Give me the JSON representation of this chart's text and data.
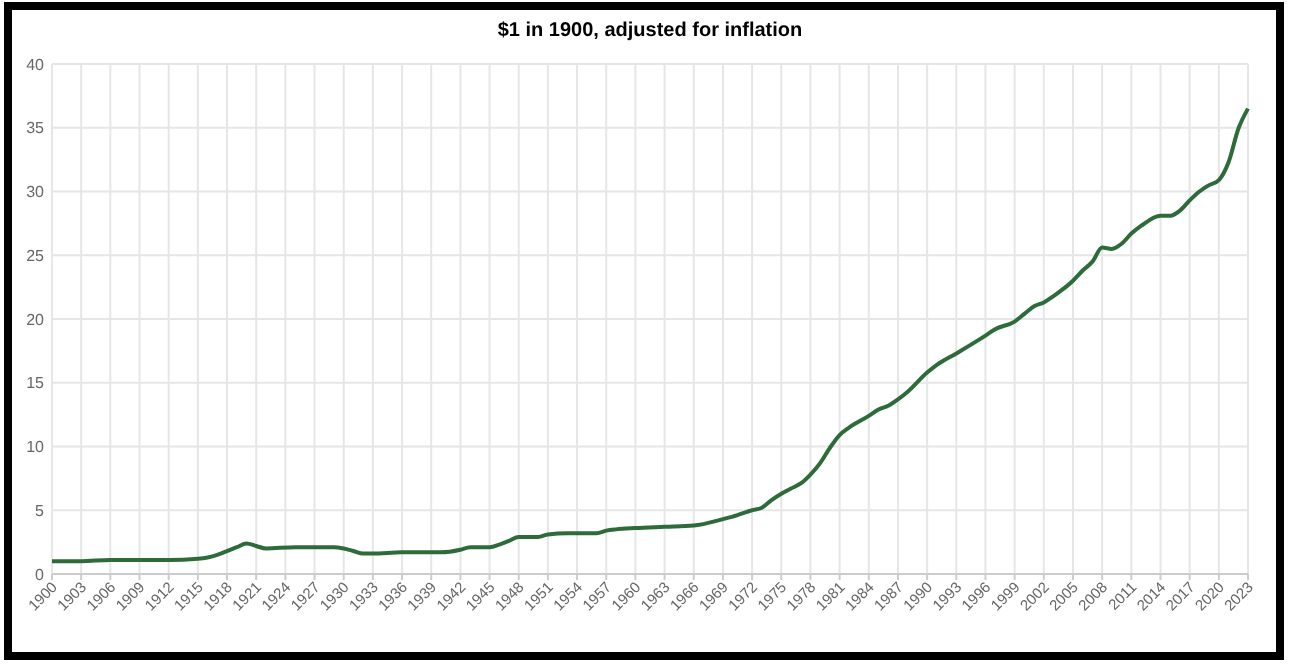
{
  "chart_data": {
    "type": "line",
    "title": "$1 in 1900, adjusted for inflation",
    "x": [
      1900,
      1903,
      1906,
      1909,
      1912,
      1915,
      1916,
      1917,
      1918,
      1919,
      1920,
      1921,
      1922,
      1925,
      1927,
      1929,
      1930,
      1931,
      1932,
      1933,
      1936,
      1937,
      1939,
      1940,
      1942,
      1943,
      1945,
      1946,
      1947,
      1948,
      1950,
      1951,
      1953,
      1956,
      1957,
      1958,
      1960,
      1963,
      1966,
      1969,
      1970,
      1972,
      1973,
      1974,
      1975,
      1976,
      1977,
      1978,
      1979,
      1980,
      1981,
      1982,
      1984,
      1985,
      1986,
      1987,
      1988,
      1990,
      1991,
      1993,
      1996,
      1997,
      1999,
      2000,
      2001,
      2002,
      2003,
      2005,
      2006,
      2007,
      2008,
      2009,
      2010,
      2011,
      2012,
      2014,
      2015,
      2016,
      2017,
      2018,
      2019,
      2020,
      2021,
      2022,
      2023
    ],
    "series": [
      {
        "color": "#2e6b3a",
        "values": [
          1.0,
          1.0,
          1.1,
          1.1,
          1.1,
          1.2,
          1.3,
          1.5,
          1.8,
          2.1,
          2.4,
          2.2,
          2.0,
          2.1,
          2.1,
          2.1,
          2.0,
          1.8,
          1.6,
          1.6,
          1.7,
          1.7,
          1.7,
          1.7,
          1.9,
          2.1,
          2.1,
          2.3,
          2.6,
          2.9,
          2.9,
          3.1,
          3.2,
          3.2,
          3.4,
          3.5,
          3.6,
          3.7,
          3.8,
          4.3,
          4.5,
          5.0,
          5.2,
          5.8,
          6.3,
          6.7,
          7.1,
          7.8,
          8.7,
          9.9,
          10.9,
          11.5,
          12.4,
          12.9,
          13.2,
          13.7,
          14.3,
          15.8,
          16.4,
          17.3,
          18.7,
          19.2,
          19.8,
          20.4,
          21.0,
          21.3,
          21.8,
          23.0,
          23.8,
          24.5,
          25.6,
          25.5,
          25.9,
          26.7,
          27.3,
          28.1,
          28.1,
          28.5,
          29.3,
          30.0,
          30.5,
          30.9,
          32.3,
          34.9,
          36.5
        ]
      }
    ],
    "xlim": [
      1900,
      2023
    ],
    "xticks": [
      1900,
      1903,
      1906,
      1909,
      1912,
      1915,
      1918,
      1921,
      1924,
      1927,
      1930,
      1933,
      1936,
      1939,
      1942,
      1945,
      1948,
      1951,
      1954,
      1957,
      1960,
      1963,
      1966,
      1969,
      1972,
      1975,
      1978,
      1981,
      1984,
      1987,
      1990,
      1993,
      1996,
      1999,
      2002,
      2005,
      2008,
      2011,
      2014,
      2017,
      2020,
      2023
    ],
    "ylim": [
      0,
      40
    ],
    "yticks": [
      0,
      5,
      10,
      15,
      20,
      25,
      30,
      35,
      40
    ],
    "grid": true,
    "marker": "none",
    "line_style": "solid"
  }
}
